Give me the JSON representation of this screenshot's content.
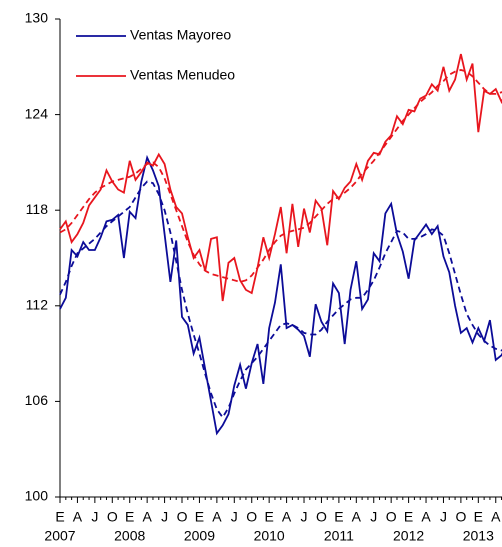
{
  "chart_data": {
    "type": "line",
    "categories": [
      "E",
      null,
      null,
      "A",
      null,
      null,
      "J",
      null,
      null,
      "O",
      null,
      null,
      "E",
      null,
      null,
      "A",
      null,
      null,
      "J",
      null,
      null,
      "O",
      null,
      null,
      "E",
      null,
      null,
      "A",
      null,
      null,
      "J",
      null,
      null,
      "O",
      null,
      null,
      "E",
      null,
      null,
      "A",
      null,
      null,
      "J",
      null,
      null,
      "O",
      null,
      null,
      "E",
      null,
      null,
      "A",
      null,
      null,
      "J",
      null,
      null,
      "O",
      null,
      null,
      "E",
      null,
      null,
      "A",
      null,
      null,
      "J",
      null,
      null,
      "O",
      null,
      null,
      "E",
      null,
      null,
      "A",
      null,
      null
    ],
    "years": [
      "2007",
      "2008",
      "2009",
      "2010",
      "2011",
      "2012",
      "2013"
    ],
    "ylim": [
      100,
      130
    ],
    "yticks": [
      100,
      106,
      112,
      118,
      124,
      130
    ],
    "legend": "upper left",
    "series": [
      {
        "name": "Ventas Mayoreo",
        "color": "#0c0c98",
        "values": [
          111.8,
          112.5,
          115.5,
          115.1,
          116.0,
          115.5,
          115.5,
          116.3,
          117.3,
          117.4,
          117.7,
          115.0,
          117.9,
          117.5,
          119.8,
          121.3,
          120.5,
          119.5,
          116.5,
          113.5,
          116.1,
          111.3,
          110.8,
          109.0,
          110.0,
          108.0,
          106.0,
          104.0,
          104.5,
          105.2,
          107.0,
          108.3,
          106.8,
          108.4,
          109.6,
          107.1,
          110.6,
          112.2,
          114.6,
          110.6,
          110.8,
          110.5,
          110.1,
          108.8,
          112.1,
          111.0,
          110.4,
          113.4,
          112.8,
          109.6,
          113.0,
          114.8,
          111.8,
          112.4,
          115.3,
          114.8,
          117.8,
          118.4,
          116.5,
          115.4,
          113.7,
          116.1,
          116.6,
          117.1,
          116.5,
          117.0,
          115.1,
          114.1,
          112.0,
          110.3,
          110.6,
          109.7,
          110.6,
          109.8,
          111.1,
          108.6,
          108.9,
          109.6
        ],
        "trend": [
          112.7,
          113.5,
          114.5,
          115.3,
          115.6,
          115.9,
          116.2,
          116.6,
          117.0,
          117.3,
          117.6,
          117.9,
          118.2,
          118.8,
          119.4,
          119.8,
          119.7,
          119.0,
          118.0,
          116.6,
          114.8,
          113.0,
          111.5,
          110.2,
          109.0,
          107.7,
          106.5,
          105.5,
          105.0,
          105.6,
          106.5,
          107.3,
          108.0,
          108.4,
          108.8,
          109.3,
          109.8,
          110.3,
          110.8,
          110.9,
          110.8,
          110.6,
          110.3,
          110.2,
          110.2,
          110.5,
          111.0,
          111.4,
          111.8,
          112.1,
          112.4,
          112.5,
          112.5,
          113.0,
          113.6,
          114.4,
          115.3,
          116.0,
          116.7,
          116.6,
          116.2,
          116.2,
          116.3,
          116.5,
          116.8,
          116.7,
          116.4,
          115.3,
          114.0,
          112.7,
          111.5,
          110.8,
          110.2,
          109.8,
          109.5,
          109.3,
          109.2,
          109.3
        ]
      },
      {
        "name": "Ventas Menudeo",
        "color": "#e8161e",
        "values": [
          116.8,
          117.3,
          116.0,
          116.5,
          117.2,
          118.3,
          118.8,
          119.3,
          120.5,
          119.8,
          119.3,
          119.1,
          121.1,
          119.9,
          120.4,
          121.0,
          120.8,
          121.5,
          120.9,
          119.3,
          118.2,
          117.8,
          116.3,
          115.0,
          115.5,
          114.2,
          116.2,
          116.3,
          112.3,
          114.7,
          115.0,
          113.6,
          113.0,
          112.8,
          114.4,
          116.3,
          115.0,
          116.5,
          118.2,
          115.3,
          118.4,
          115.7,
          118.1,
          116.6,
          118.6,
          118.1,
          115.8,
          119.2,
          118.7,
          119.4,
          119.8,
          120.9,
          119.9,
          121.1,
          121.6,
          121.5,
          122.3,
          122.7,
          123.9,
          123.4,
          124.3,
          124.2,
          125.0,
          125.2,
          125.9,
          125.5,
          127.0,
          125.5,
          126.2,
          127.8,
          126.2,
          127.2,
          122.9,
          125.5,
          125.3,
          125.6,
          124.8,
          125.6
        ],
        "trend": [
          116.6,
          116.8,
          117.2,
          117.7,
          118.2,
          118.7,
          119.1,
          119.4,
          119.6,
          119.8,
          119.9,
          120.0,
          120.1,
          120.3,
          120.6,
          120.9,
          121.0,
          120.7,
          120.0,
          119.0,
          118.0,
          117.0,
          116.0,
          115.2,
          114.6,
          114.2,
          114.0,
          113.9,
          113.8,
          113.7,
          113.6,
          113.5,
          113.6,
          113.9,
          114.4,
          114.9,
          115.5,
          116.0,
          116.4,
          116.6,
          116.7,
          116.8,
          116.9,
          117.2,
          117.6,
          118.0,
          118.4,
          118.7,
          118.8,
          119.1,
          119.4,
          119.8,
          120.3,
          120.7,
          121.1,
          121.6,
          122.1,
          122.6,
          123.1,
          123.6,
          124.0,
          124.4,
          124.8,
          125.1,
          125.4,
          125.8,
          126.1,
          126.5,
          126.7,
          126.8,
          126.7,
          126.4,
          126.0,
          125.6,
          125.3,
          125.3,
          125.4,
          125.5
        ]
      }
    ]
  }
}
